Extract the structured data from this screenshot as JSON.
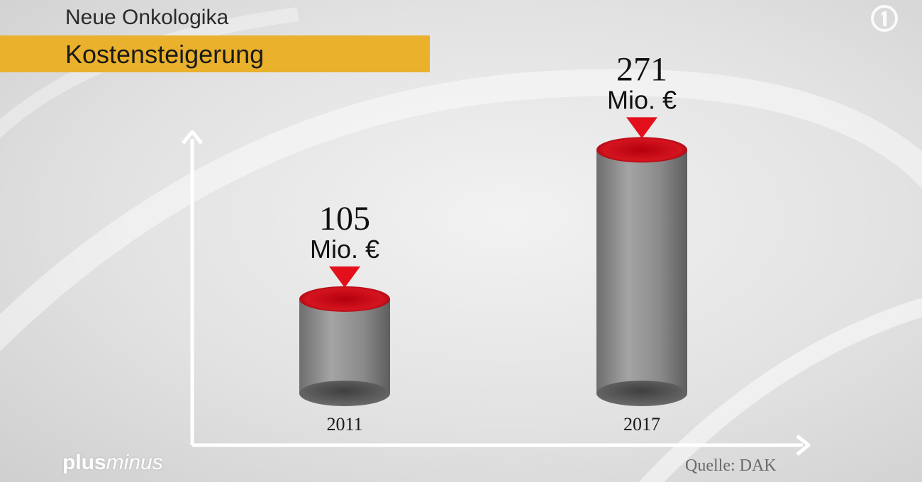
{
  "header": {
    "supertitle": "Neue Onkologika",
    "title": "Kostensteigerung"
  },
  "footer": {
    "logo_plus": "plus",
    "logo_minus": "minus",
    "source": "Quelle: DAK"
  },
  "colors": {
    "title_band": "#e9b12c",
    "accent_red": "#c8101e",
    "cylinder_gray": "#8d8d8d"
  },
  "icons": {
    "broadcaster_logo": "ard-one-icon"
  },
  "chart_data": {
    "type": "bar",
    "title": "Kostensteigerung",
    "categories": [
      "2011",
      "2017"
    ],
    "values": [
      105,
      271
    ],
    "value_labels": [
      "105",
      "271"
    ],
    "unit_label": "Mio. €",
    "xlabel": "",
    "ylabel": "",
    "ylim": [
      0,
      300
    ],
    "grid": false,
    "legend": "none"
  }
}
